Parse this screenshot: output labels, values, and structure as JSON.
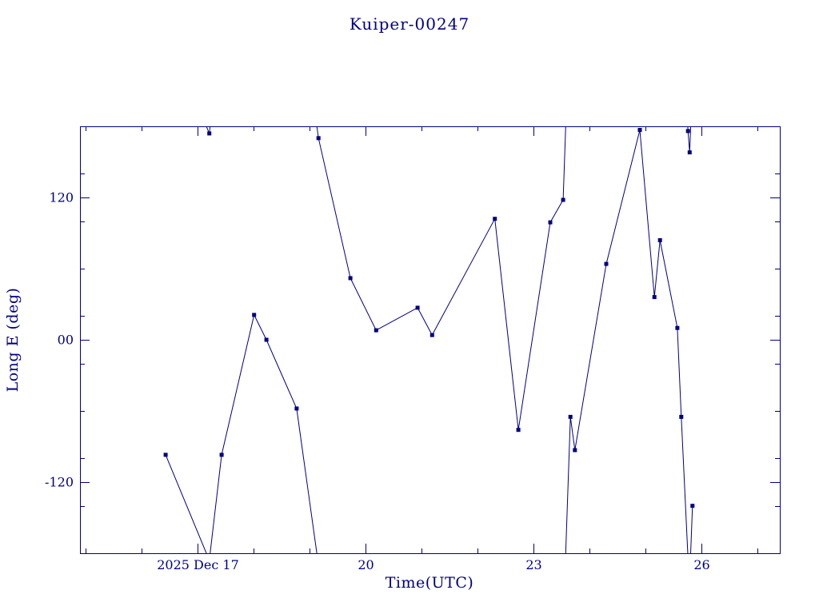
{
  "page": {
    "background": "#ffffff",
    "accent": "#000080"
  },
  "chart_data": {
    "type": "line",
    "title": "Kuiper-00247",
    "xlabel": "Time(UTC)",
    "ylabel": "Long E (deg)",
    "x_unit": "day of 2025 Dec (UTC)",
    "xlim": [
      14.9,
      27.4
    ],
    "ylim": [
      -180,
      180
    ],
    "grid": false,
    "legend": "none",
    "line_color": "#000080",
    "frame_color": "#000080",
    "marker": "square",
    "wrap_degrees": 360,
    "x_major_ticks": [
      {
        "value": 17,
        "label": "2025 Dec 17"
      },
      {
        "value": 20,
        "label": "20"
      },
      {
        "value": 23,
        "label": "23"
      },
      {
        "value": 26,
        "label": "26"
      }
    ],
    "x_minor_step": 1,
    "y_major_ticks": [
      {
        "value": 120,
        "label": "120"
      },
      {
        "value": 0,
        "label": "00"
      },
      {
        "value": -120,
        "label": "-120"
      }
    ],
    "y_minor_step": 40,
    "points": [
      [
        16.43,
        -97
      ],
      [
        17.21,
        174
      ],
      [
        17.43,
        -97
      ],
      [
        18.01,
        21
      ],
      [
        18.23,
        0
      ],
      [
        18.77,
        -58
      ],
      [
        19.16,
        170
      ],
      [
        19.73,
        52
      ],
      [
        20.19,
        8
      ],
      [
        20.93,
        27
      ],
      [
        21.19,
        4
      ],
      [
        22.31,
        102
      ],
      [
        22.73,
        -76
      ],
      [
        23.3,
        99
      ],
      [
        23.53,
        118
      ],
      [
        23.66,
        -65
      ],
      [
        23.74,
        -93
      ],
      [
        24.3,
        64
      ],
      [
        24.9,
        177
      ],
      [
        25.16,
        36
      ],
      [
        25.26,
        84
      ],
      [
        25.57,
        10
      ],
      [
        25.64,
        -65
      ],
      [
        25.76,
        176
      ],
      [
        25.79,
        158
      ],
      [
        25.84,
        -140
      ]
    ]
  }
}
